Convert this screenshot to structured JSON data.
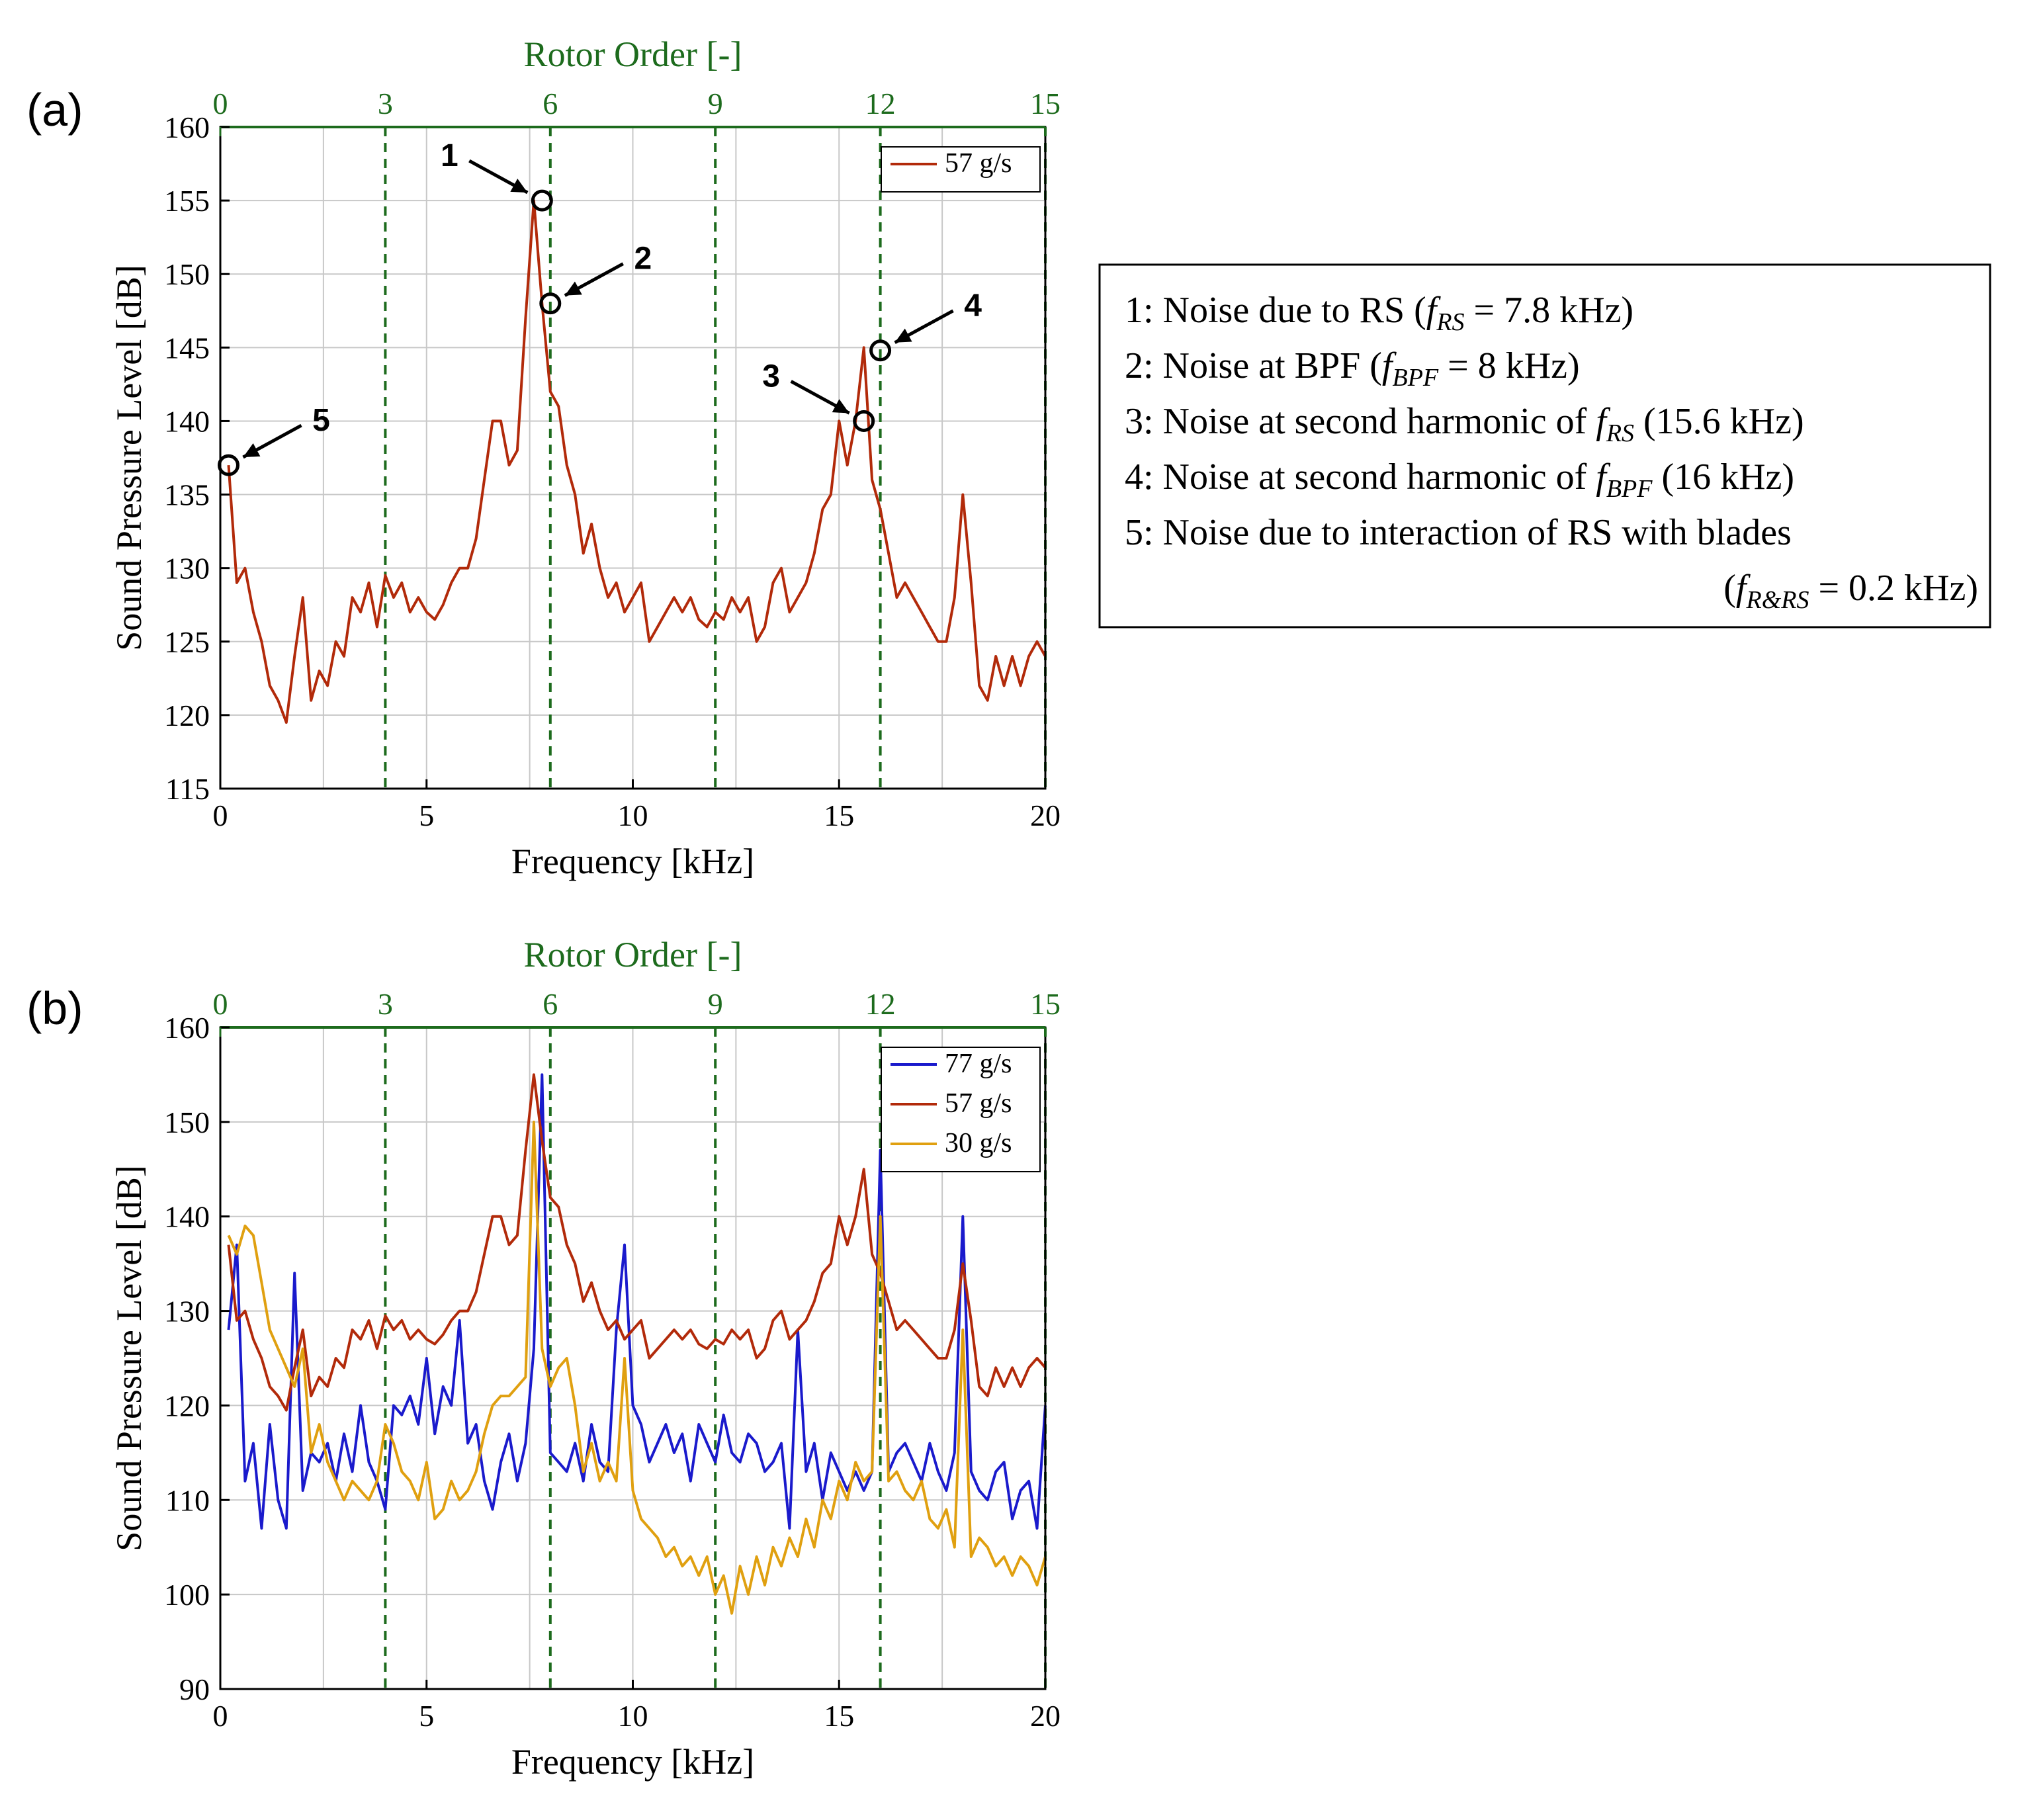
{
  "colors": {
    "series_77": "#1a1acc",
    "series_57": "#b22a0a",
    "series_30": "#e0a010",
    "order_lines": "#1d6b1d",
    "grid": "#c8c8c8",
    "axis": "#000000"
  },
  "notes_box": {
    "lines": [
      "1: Noise due to RS (f_RS = 7.8 kHz)",
      "2: Noise at BPF (f_BPF = 8 kHz)",
      "3: Noise at second harmonic of f_RS (15.6 kHz)",
      "4: Noise at second harmonic of f_BPF (16 kHz)",
      "5: Noise due to interaction of RS with blades",
      "(f_R&RS = 0.2 kHz)"
    ]
  },
  "chart_data": [
    {
      "id": "a",
      "panel_label": "(a)",
      "type": "line",
      "xlabel": "Frequency [kHz]",
      "ylabel": "Sound Pressure Level [dB]",
      "top_xlabel": "Rotor Order [-]",
      "xlim": [
        0,
        20
      ],
      "ylim": [
        115,
        160
      ],
      "xticks": [
        "0",
        "5",
        "10",
        "15",
        "20"
      ],
      "yticks": [
        "115",
        "120",
        "125",
        "130",
        "135",
        "140",
        "145",
        "150",
        "155",
        "160"
      ],
      "top_ticks": [
        "0",
        "3",
        "6",
        "9",
        "12",
        "15"
      ],
      "order_lines_khz": [
        4,
        8,
        12,
        16,
        20
      ],
      "legend": "top-right",
      "series": [
        {
          "name": "57 g/s",
          "color_key": "series_57",
          "x": [
            0.2,
            0.4,
            0.6,
            0.8,
            1.0,
            1.2,
            1.4,
            1.6,
            1.8,
            2.0,
            2.2,
            2.4,
            2.6,
            2.8,
            3.0,
            3.2,
            3.4,
            3.6,
            3.8,
            4.0,
            4.2,
            4.4,
            4.6,
            4.8,
            5.0,
            5.2,
            5.4,
            5.6,
            5.8,
            6.0,
            6.2,
            6.4,
            6.6,
            6.8,
            7.0,
            7.2,
            7.4,
            7.6,
            7.8,
            8.0,
            8.2,
            8.4,
            8.6,
            8.8,
            9.0,
            9.2,
            9.4,
            9.6,
            9.8,
            10.0,
            10.2,
            10.4,
            10.6,
            10.8,
            11.0,
            11.2,
            11.4,
            11.6,
            11.8,
            12.0,
            12.2,
            12.4,
            12.6,
            12.8,
            13.0,
            13.2,
            13.4,
            13.6,
            13.8,
            14.0,
            14.2,
            14.4,
            14.6,
            14.8,
            15.0,
            15.2,
            15.4,
            15.6,
            15.8,
            16.0,
            16.2,
            16.4,
            16.6,
            16.8,
            17.0,
            17.2,
            17.4,
            17.6,
            17.8,
            18.0,
            18.2,
            18.4,
            18.6,
            18.8,
            19.0,
            19.2,
            19.4,
            19.6,
            19.8,
            20.0
          ],
          "values": [
            137,
            129,
            130,
            127,
            125,
            122,
            121,
            119.5,
            124,
            128,
            121,
            123,
            122,
            125,
            124,
            128,
            127,
            129,
            126,
            129.5,
            128,
            129,
            127,
            128,
            127,
            126.5,
            127.5,
            129,
            130,
            130,
            132,
            136,
            140,
            140,
            137,
            138,
            147,
            155,
            148,
            142,
            141,
            137,
            135,
            131,
            133,
            130,
            128,
            129,
            127,
            128,
            129,
            125,
            126,
            127,
            128,
            127,
            128,
            126.5,
            126,
            127,
            126.5,
            128,
            127,
            128,
            125,
            126,
            129,
            130,
            127,
            128,
            129,
            131,
            134,
            135,
            140,
            137,
            140,
            145,
            136,
            134,
            131,
            128,
            129,
            128,
            127,
            126,
            125,
            125,
            128,
            135,
            129,
            122,
            121,
            124,
            122,
            124,
            122,
            124,
            125,
            124
          ]
        }
      ],
      "markers": [
        {
          "label": "1",
          "x": 7.8,
          "y": 155
        },
        {
          "label": "2",
          "x": 8.0,
          "y": 148
        },
        {
          "label": "3",
          "x": 15.6,
          "y": 140
        },
        {
          "label": "4",
          "x": 16.0,
          "y": 144.8
        },
        {
          "label": "5",
          "x": 0.2,
          "y": 137
        }
      ]
    },
    {
      "id": "b",
      "panel_label": "(b)",
      "type": "line",
      "xlabel": "Frequency [kHz]",
      "ylabel": "Sound Pressure Level [dB]",
      "top_xlabel": "Rotor Order [-]",
      "xlim": [
        0,
        20
      ],
      "ylim": [
        90,
        160
      ],
      "xticks": [
        "0",
        "5",
        "10",
        "15",
        "20"
      ],
      "yticks": [
        "90",
        "100",
        "110",
        "120",
        "130",
        "140",
        "150",
        "160"
      ],
      "top_ticks": [
        "0",
        "3",
        "6",
        "9",
        "12",
        "15"
      ],
      "order_lines_khz": [
        4,
        8,
        12,
        16,
        20
      ],
      "legend": "top-right",
      "series": [
        {
          "name": "77 g/s",
          "color_key": "series_77",
          "x": [
            0.2,
            0.4,
            0.6,
            0.8,
            1.0,
            1.2,
            1.4,
            1.6,
            1.8,
            2.0,
            2.2,
            2.4,
            2.6,
            2.8,
            3.0,
            3.2,
            3.4,
            3.6,
            3.8,
            4.0,
            4.2,
            4.4,
            4.6,
            4.8,
            5.0,
            5.2,
            5.4,
            5.6,
            5.8,
            6.0,
            6.2,
            6.4,
            6.6,
            6.8,
            7.0,
            7.2,
            7.4,
            7.6,
            7.8,
            8.0,
            8.2,
            8.4,
            8.6,
            8.8,
            9.0,
            9.2,
            9.4,
            9.6,
            9.8,
            10.0,
            10.2,
            10.4,
            10.6,
            10.8,
            11.0,
            11.2,
            11.4,
            11.6,
            11.8,
            12.0,
            12.2,
            12.4,
            12.6,
            12.8,
            13.0,
            13.2,
            13.4,
            13.6,
            13.8,
            14.0,
            14.2,
            14.4,
            14.6,
            14.8,
            15.0,
            15.2,
            15.4,
            15.6,
            15.8,
            16.0,
            16.2,
            16.4,
            16.6,
            16.8,
            17.0,
            17.2,
            17.4,
            17.6,
            17.8,
            18.0,
            18.2,
            18.4,
            18.6,
            18.8,
            19.0,
            19.2,
            19.4,
            19.6,
            19.8,
            20.0
          ],
          "values": [
            128,
            137,
            112,
            116,
            107,
            118,
            110,
            107,
            134,
            111,
            115,
            114,
            116,
            112,
            117,
            113,
            120,
            114,
            112,
            109,
            120,
            119,
            121,
            118,
            125,
            117,
            122,
            120,
            129,
            116,
            118,
            112,
            109,
            114,
            117,
            112,
            116,
            126,
            155,
            115,
            114,
            113,
            116,
            112,
            118,
            114,
            113,
            128,
            137,
            120,
            118,
            114,
            116,
            118,
            115,
            117,
            112,
            118,
            116,
            114,
            119,
            115,
            114,
            117,
            116,
            113,
            114,
            116,
            107,
            128,
            113,
            116,
            110,
            115,
            113,
            111,
            113,
            111,
            113,
            147,
            113,
            115,
            116,
            114,
            112,
            116,
            113,
            111,
            115,
            140,
            113,
            111,
            110,
            113,
            114,
            108,
            111,
            112,
            107,
            120
          ]
        },
        {
          "name": "57 g/s",
          "color_key": "series_57",
          "x": [
            0.2,
            0.4,
            0.6,
            0.8,
            1.0,
            1.2,
            1.4,
            1.6,
            1.8,
            2.0,
            2.2,
            2.4,
            2.6,
            2.8,
            3.0,
            3.2,
            3.4,
            3.6,
            3.8,
            4.0,
            4.2,
            4.4,
            4.6,
            4.8,
            5.0,
            5.2,
            5.4,
            5.6,
            5.8,
            6.0,
            6.2,
            6.4,
            6.6,
            6.8,
            7.0,
            7.2,
            7.4,
            7.6,
            7.8,
            8.0,
            8.2,
            8.4,
            8.6,
            8.8,
            9.0,
            9.2,
            9.4,
            9.6,
            9.8,
            10.0,
            10.2,
            10.4,
            10.6,
            10.8,
            11.0,
            11.2,
            11.4,
            11.6,
            11.8,
            12.0,
            12.2,
            12.4,
            12.6,
            12.8,
            13.0,
            13.2,
            13.4,
            13.6,
            13.8,
            14.0,
            14.2,
            14.4,
            14.6,
            14.8,
            15.0,
            15.2,
            15.4,
            15.6,
            15.8,
            16.0,
            16.2,
            16.4,
            16.6,
            16.8,
            17.0,
            17.2,
            17.4,
            17.6,
            17.8,
            18.0,
            18.2,
            18.4,
            18.6,
            18.8,
            19.0,
            19.2,
            19.4,
            19.6,
            19.8,
            20.0
          ],
          "values": [
            137,
            129,
            130,
            127,
            125,
            122,
            121,
            119.5,
            124,
            128,
            121,
            123,
            122,
            125,
            124,
            128,
            127,
            129,
            126,
            129.5,
            128,
            129,
            127,
            128,
            127,
            126.5,
            127.5,
            129,
            130,
            130,
            132,
            136,
            140,
            140,
            137,
            138,
            147,
            155,
            148,
            142,
            141,
            137,
            135,
            131,
            133,
            130,
            128,
            129,
            127,
            128,
            129,
            125,
            126,
            127,
            128,
            127,
            128,
            126.5,
            126,
            127,
            126.5,
            128,
            127,
            128,
            125,
            126,
            129,
            130,
            127,
            128,
            129,
            131,
            134,
            135,
            140,
            137,
            140,
            145,
            136,
            134,
            131,
            128,
            129,
            128,
            127,
            126,
            125,
            125,
            128,
            135,
            129,
            122,
            121,
            124,
            122,
            124,
            122,
            124,
            125,
            124
          ]
        },
        {
          "name": "30 g/s",
          "color_key": "series_30",
          "x": [
            0.2,
            0.4,
            0.6,
            0.8,
            1.0,
            1.2,
            1.4,
            1.6,
            1.8,
            2.0,
            2.2,
            2.4,
            2.6,
            2.8,
            3.0,
            3.2,
            3.4,
            3.6,
            3.8,
            4.0,
            4.2,
            4.4,
            4.6,
            4.8,
            5.0,
            5.2,
            5.4,
            5.6,
            5.8,
            6.0,
            6.2,
            6.4,
            6.6,
            6.8,
            7.0,
            7.2,
            7.4,
            7.6,
            7.8,
            8.0,
            8.2,
            8.4,
            8.6,
            8.8,
            9.0,
            9.2,
            9.4,
            9.6,
            9.8,
            10.0,
            10.2,
            10.4,
            10.6,
            10.8,
            11.0,
            11.2,
            11.4,
            11.6,
            11.8,
            12.0,
            12.2,
            12.4,
            12.6,
            12.8,
            13.0,
            13.2,
            13.4,
            13.6,
            13.8,
            14.0,
            14.2,
            14.4,
            14.6,
            14.8,
            15.0,
            15.2,
            15.4,
            15.6,
            15.8,
            16.0,
            16.2,
            16.4,
            16.6,
            16.8,
            17.0,
            17.2,
            17.4,
            17.6,
            17.8,
            18.0,
            18.2,
            18.4,
            18.6,
            18.8,
            19.0,
            19.2,
            19.4,
            19.6,
            19.8,
            20.0
          ],
          "values": [
            138,
            136,
            139,
            138,
            133,
            128,
            126,
            124,
            122,
            126,
            115,
            118,
            114,
            112,
            110,
            112,
            111,
            110,
            112,
            118,
            116,
            113,
            112,
            110,
            114,
            108,
            109,
            112,
            110,
            111,
            113,
            117,
            120,
            121,
            121,
            122,
            123,
            150,
            126,
            122,
            124,
            125,
            120,
            113,
            116,
            112,
            114,
            112,
            125,
            111,
            108,
            107,
            106,
            104,
            105,
            103,
            104,
            102,
            104,
            100,
            102,
            98,
            103,
            100,
            104,
            101,
            105,
            103,
            106,
            104,
            108,
            105,
            110,
            108,
            112,
            110,
            114,
            112,
            113,
            140,
            112,
            113,
            111,
            110,
            112,
            108,
            107,
            109,
            105,
            128,
            104,
            106,
            105,
            103,
            104,
            102,
            104,
            103,
            101,
            104
          ]
        }
      ]
    }
  ]
}
